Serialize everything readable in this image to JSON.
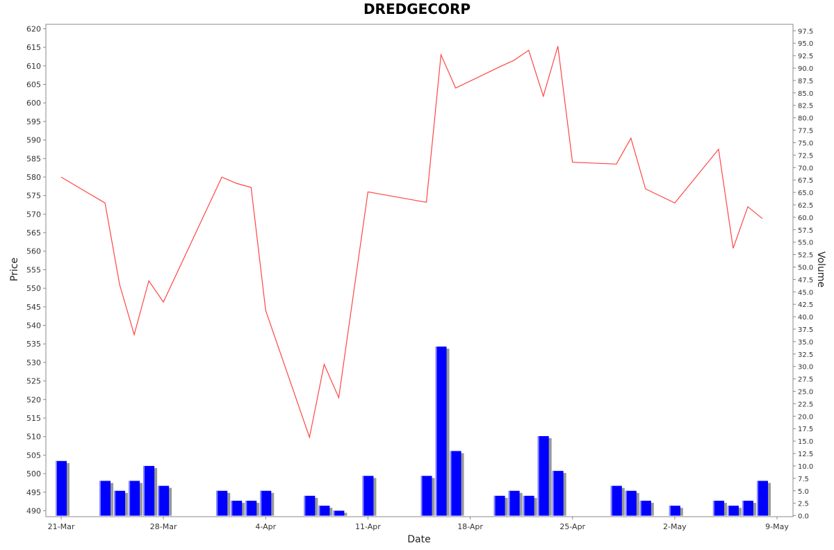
{
  "chart_data": {
    "type": "line",
    "title": "DREDGECORP",
    "xlabel": "Date",
    "ylabel": "Price",
    "y2label": "Volume",
    "x_axis": {
      "type": "date",
      "range": [
        "2024-03-21",
        "2024-05-09"
      ],
      "tick_dates": [
        "2024-03-21",
        "2024-03-28",
        "2024-04-04",
        "2024-04-11",
        "2024-04-18",
        "2024-04-25",
        "2024-05-02",
        "2024-05-09"
      ],
      "tick_labels": [
        "21-Mar",
        "28-Mar",
        "4-Apr",
        "11-Apr",
        "18-Apr",
        "25-Apr",
        "2-May",
        "9-May"
      ]
    },
    "ylim": [
      488.4,
      621.2
    ],
    "y_ticks": [
      490,
      495,
      500,
      505,
      510,
      515,
      520,
      525,
      530,
      535,
      540,
      545,
      550,
      555,
      560,
      565,
      570,
      575,
      580,
      585,
      590,
      595,
      600,
      605,
      610,
      615,
      620
    ],
    "y2lim": [
      -0.2,
      98.8
    ],
    "y2_ticks": [
      "0.0",
      "2.5",
      "5.0",
      "7.5",
      "10.0",
      "12.5",
      "15.0",
      "17.5",
      "20.0",
      "22.5",
      "25.0",
      "27.5",
      "30.0",
      "32.5",
      "35.0",
      "37.5",
      "40.0",
      "42.5",
      "45.0",
      "47.5",
      "50.0",
      "52.5",
      "55.0",
      "57.5",
      "60.0",
      "62.5",
      "65.0",
      "67.5",
      "70.0",
      "72.5",
      "75.0",
      "77.5",
      "80.0",
      "82.5",
      "85.0",
      "87.5",
      "90.0",
      "92.5",
      "95.0",
      "97.5"
    ],
    "series": [
      {
        "kind": "line",
        "axis": "left",
        "color": "#ff4444",
        "points": [
          [
            "2024-03-21",
            580.0
          ],
          [
            "2024-03-24",
            573.0
          ],
          [
            "2024-03-25",
            551.0
          ],
          [
            "2024-03-26",
            537.5
          ],
          [
            "2024-03-27",
            552.0
          ],
          [
            "2024-03-28",
            546.3
          ],
          [
            "2024-04-01",
            580.0
          ],
          [
            "2024-04-02",
            578.3
          ],
          [
            "2024-04-03",
            577.2
          ],
          [
            "2024-04-04",
            544.0
          ],
          [
            "2024-04-07",
            509.8
          ],
          [
            "2024-04-08",
            529.5
          ],
          [
            "2024-04-09",
            520.5
          ],
          [
            "2024-04-11",
            576.0
          ],
          [
            "2024-04-15",
            573.2
          ],
          [
            "2024-04-16",
            613.0
          ],
          [
            "2024-04-17",
            604.0
          ],
          [
            "2024-04-20",
            609.7
          ],
          [
            "2024-04-21",
            611.5
          ],
          [
            "2024-04-22",
            614.2
          ],
          [
            "2024-04-23",
            601.8
          ],
          [
            "2024-04-24",
            615.3
          ],
          [
            "2024-04-25",
            584.0
          ],
          [
            "2024-04-28",
            583.5
          ],
          [
            "2024-04-29",
            590.5
          ],
          [
            "2024-04-30",
            576.8
          ],
          [
            "2024-05-02",
            573.0
          ],
          [
            "2024-05-05",
            587.5
          ],
          [
            "2024-05-06",
            560.8
          ],
          [
            "2024-05-07",
            572.0
          ],
          [
            "2024-05-08",
            568.8
          ]
        ]
      },
      {
        "kind": "bar",
        "axis": "right",
        "color": "#0000ff",
        "shadow_color": "#999999",
        "points": [
          [
            "2024-03-21",
            11.0
          ],
          [
            "2024-03-24",
            7.0
          ],
          [
            "2024-03-25",
            5.0
          ],
          [
            "2024-03-26",
            7.0
          ],
          [
            "2024-03-27",
            10.0
          ],
          [
            "2024-03-28",
            6.0
          ],
          [
            "2024-04-01",
            5.0
          ],
          [
            "2024-04-02",
            3.0
          ],
          [
            "2024-04-03",
            3.0
          ],
          [
            "2024-04-04",
            5.0
          ],
          [
            "2024-04-07",
            4.0
          ],
          [
            "2024-04-08",
            2.0
          ],
          [
            "2024-04-09",
            1.0
          ],
          [
            "2024-04-11",
            8.0
          ],
          [
            "2024-04-15",
            8.0
          ],
          [
            "2024-04-16",
            34.0
          ],
          [
            "2024-04-17",
            13.0
          ],
          [
            "2024-04-20",
            4.0
          ],
          [
            "2024-04-21",
            5.0
          ],
          [
            "2024-04-22",
            4.0
          ],
          [
            "2024-04-23",
            16.0
          ],
          [
            "2024-04-24",
            9.0
          ],
          [
            "2024-04-28",
            6.0
          ],
          [
            "2024-04-29",
            5.0
          ],
          [
            "2024-04-30",
            3.0
          ],
          [
            "2024-05-02",
            2.0
          ],
          [
            "2024-05-05",
            3.0
          ],
          [
            "2024-05-06",
            2.0
          ],
          [
            "2024-05-07",
            3.0
          ],
          [
            "2024-05-08",
            7.0
          ]
        ]
      }
    ]
  }
}
